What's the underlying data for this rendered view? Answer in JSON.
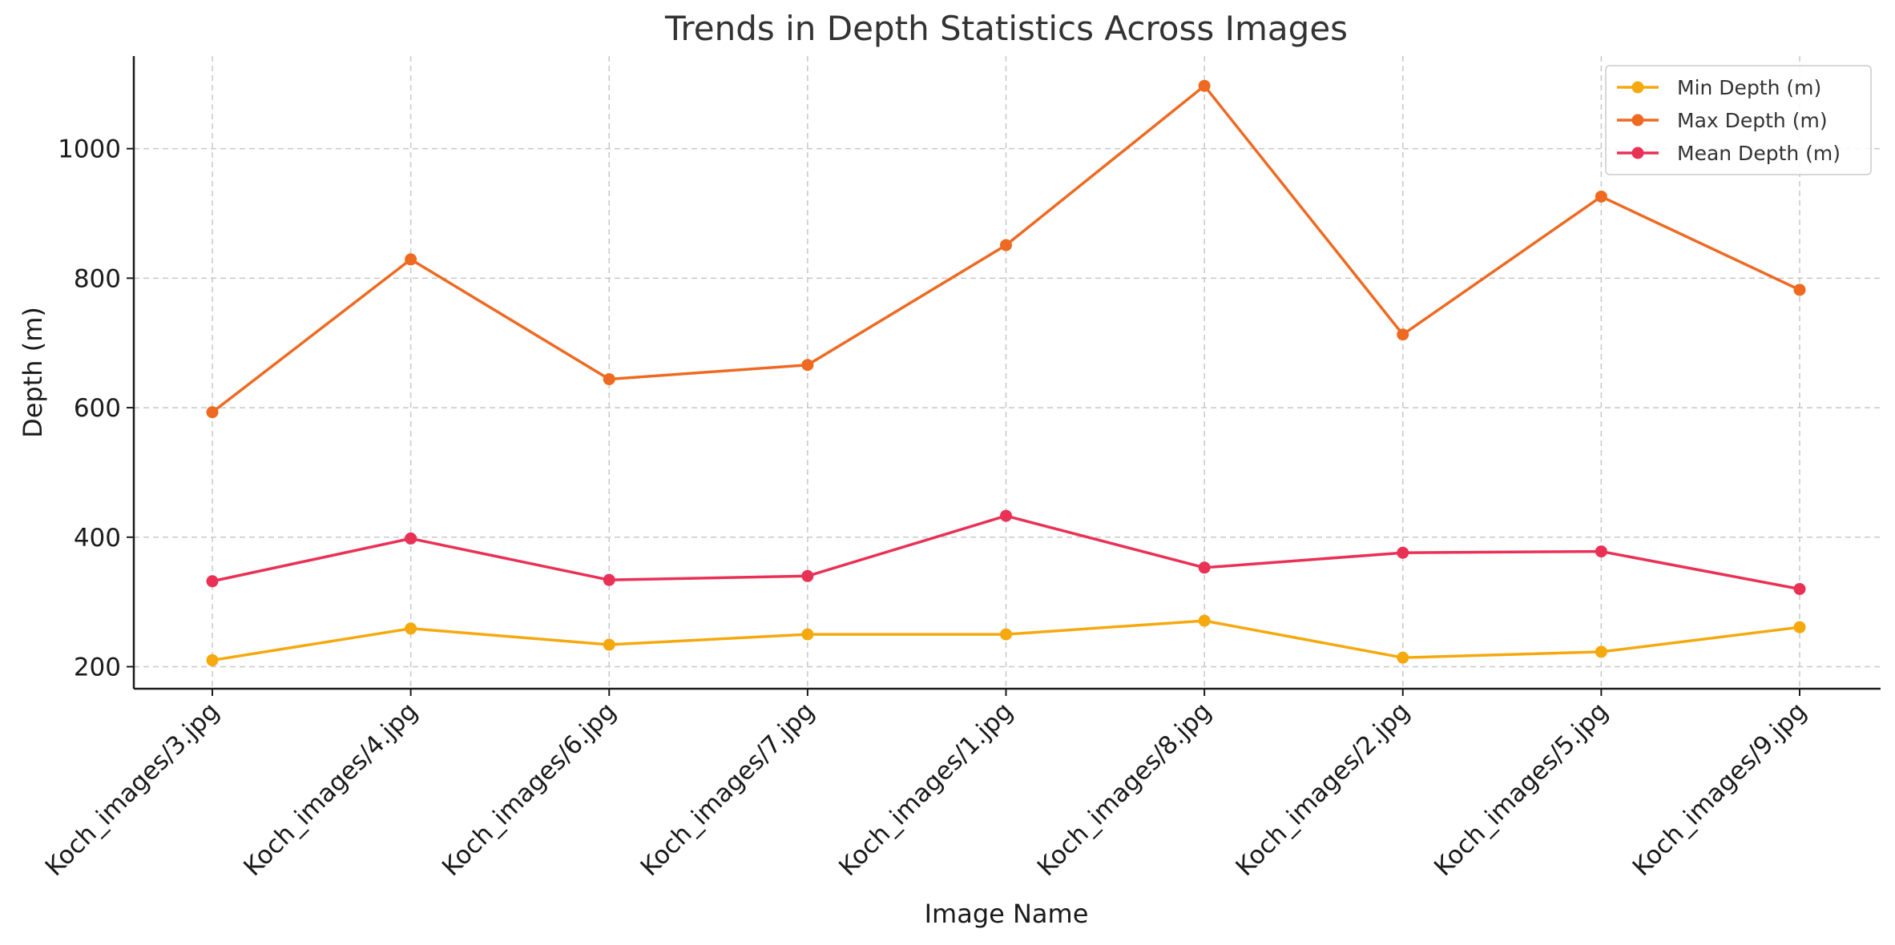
{
  "chart_data": {
    "type": "line",
    "title": "Trends in Depth Statistics Across Images",
    "xlabel": "Image Name",
    "ylabel": "Depth (m)",
    "categories": [
      "Koch_images/3.jpg",
      "Koch_images/4.jpg",
      "Koch_images/6.jpg",
      "Koch_images/7.jpg",
      "Koch_images/1.jpg",
      "Koch_images/8.jpg",
      "Koch_images/2.jpg",
      "Koch_images/5.jpg",
      "Koch_images/9.jpg"
    ],
    "ylim": [
      166,
      1143
    ],
    "yticks": [
      200,
      400,
      600,
      800,
      1000
    ],
    "grid": true,
    "legend_position": "top-right",
    "series": [
      {
        "name": "Min Depth (m)",
        "color": "#F5A90F",
        "values": [
          210,
          259,
          234,
          250,
          250,
          271,
          214,
          223,
          261
        ]
      },
      {
        "name": "Max Depth (m)",
        "color": "#EE6A21",
        "values": [
          593,
          829,
          644,
          666,
          851,
          1097,
          713,
          926,
          782
        ]
      },
      {
        "name": "Mean Depth (m)",
        "color": "#E93156",
        "values": [
          332,
          398,
          334,
          340,
          433,
          353,
          376,
          378,
          320
        ]
      }
    ]
  }
}
